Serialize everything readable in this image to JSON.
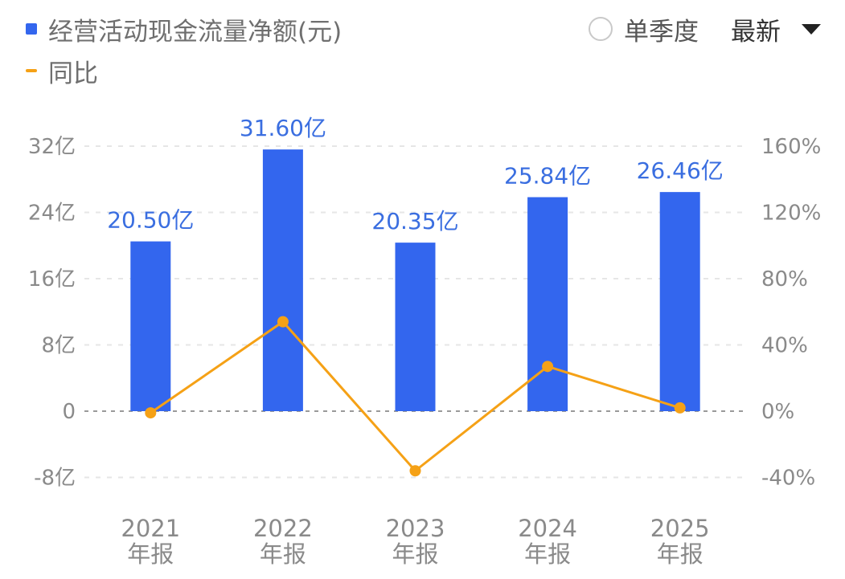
{
  "legend": {
    "bar_label": "经营活动现金流量净额(元)",
    "line_label": "同比"
  },
  "controls": {
    "quarter_label": "单季度",
    "dropdown_label": "最新",
    "dropdown_icon": "caret-down-icon",
    "radio_icon": "radio-unchecked-icon"
  },
  "colors": {
    "bar": "#3366ee",
    "line": "#f5a116",
    "label": "#3a6ee0",
    "axis_text": "#8a8a8a",
    "grid": "#e6e6e6",
    "zero_line": "#9a9a9a"
  },
  "chart_data": {
    "type": "bar",
    "categories": [
      "2021\n年报",
      "2022\n年报",
      "2023\n年报",
      "2024\n年报",
      "2025\n年报"
    ],
    "series": [
      {
        "name": "经营活动现金流量净额(元)",
        "type": "bar",
        "axis": "left",
        "values": [
          20.5,
          31.6,
          20.35,
          25.84,
          26.46
        ],
        "labels": [
          "20.50亿",
          "31.60亿",
          "20.35亿",
          "25.84亿",
          "26.46亿"
        ]
      },
      {
        "name": "同比",
        "type": "line",
        "axis": "right",
        "values": [
          -1,
          54,
          -36,
          27,
          2
        ]
      }
    ],
    "left_axis": {
      "ylim": [
        -8,
        32
      ],
      "ticks": [
        32,
        24,
        16,
        8,
        0,
        -8
      ],
      "tick_labels": [
        "32亿",
        "24亿",
        "16亿",
        "8亿",
        "0",
        "-8亿"
      ]
    },
    "right_axis": {
      "ylim": [
        -40,
        160
      ],
      "ticks": [
        160,
        120,
        80,
        40,
        0,
        -40
      ],
      "tick_labels": [
        "160%",
        "120%",
        "80%",
        "40%",
        "0%",
        "-40%"
      ]
    },
    "grid": true,
    "legend_position": "top-left"
  }
}
